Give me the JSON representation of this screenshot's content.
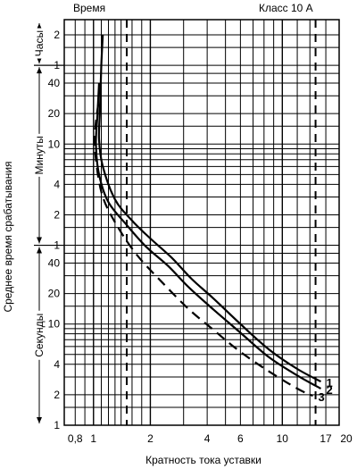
{
  "chart_data": {
    "type": "line",
    "title_left": "Время",
    "title_right": "Класс 10 А",
    "xlabel": "Кратность тока уставки",
    "ylabel": "Среднее время срабатывания",
    "x_scale": "log",
    "xlim": [
      0.7,
      20
    ],
    "x_ticks": [
      {
        "value": 0.8,
        "label": "0,8"
      },
      {
        "value": 1,
        "label": "1"
      },
      {
        "value": 2,
        "label": "2"
      },
      {
        "value": 4,
        "label": "4"
      },
      {
        "value": 6,
        "label": "6"
      },
      {
        "value": 10,
        "label": "10"
      },
      {
        "value": 17,
        "label": "17"
      },
      {
        "value": 20,
        "label": "20"
      }
    ],
    "y_scale": "log",
    "y_unit": "seconds",
    "y_decades": [
      {
        "name": "Часы",
        "unit": "hours",
        "ticks": [
          {
            "value": 1,
            "label": "1"
          },
          {
            "value": 2,
            "label": "2"
          }
        ]
      },
      {
        "name": "Минуты",
        "unit": "minutes",
        "ticks": [
          {
            "value": 1,
            "label": "1"
          },
          {
            "value": 2,
            "label": "2"
          },
          {
            "value": 4,
            "label": "4"
          },
          {
            "value": 10,
            "label": "10"
          },
          {
            "value": 20,
            "label": "20"
          },
          {
            "value": 40,
            "label": "40"
          }
        ]
      },
      {
        "name": "Секунды",
        "unit": "seconds",
        "ticks": [
          {
            "value": 1,
            "label": "1"
          },
          {
            "value": 2,
            "label": "2"
          },
          {
            "value": 4,
            "label": "4"
          },
          {
            "value": 10,
            "label": "10"
          },
          {
            "value": 20,
            "label": "20"
          },
          {
            "value": 40,
            "label": "40"
          }
        ]
      }
    ],
    "reference_lines_x": [
      1.5,
      15
    ],
    "series": [
      {
        "name": "1",
        "style": "solid",
        "points": [
          [
            1.12,
            7200
          ],
          [
            1.1,
            3600
          ],
          [
            1.08,
            1200
          ],
          [
            1.07,
            660
          ],
          [
            1.12,
            360
          ],
          [
            1.3,
            170
          ],
          [
            1.6,
            105
          ],
          [
            2.0,
            70
          ],
          [
            2.6,
            45
          ],
          [
            3.3,
            28
          ],
          [
            4.3,
            18
          ],
          [
            6.0,
            10
          ],
          [
            8.5,
            5.6
          ],
          [
            12.0,
            3.6
          ],
          [
            16.0,
            2.7
          ]
        ]
      },
      {
        "name": "2",
        "style": "solid",
        "points": [
          [
            1.07,
            2400
          ],
          [
            1.05,
            1200
          ],
          [
            1.03,
            600
          ],
          [
            1.07,
            300
          ],
          [
            1.2,
            160
          ],
          [
            1.5,
            95
          ],
          [
            1.9,
            58
          ],
          [
            2.5,
            37
          ],
          [
            3.2,
            23
          ],
          [
            4.3,
            14
          ],
          [
            6.0,
            8.2
          ],
          [
            8.5,
            4.7
          ],
          [
            12.0,
            3.1
          ],
          [
            16.0,
            2.3
          ]
        ]
      },
      {
        "name": "3",
        "style": "dashed",
        "points": [
          [
            1.06,
            1500
          ],
          [
            1.02,
            800
          ],
          [
            1.03,
            420
          ],
          [
            1.12,
            180
          ],
          [
            1.35,
            90
          ],
          [
            1.7,
            48
          ],
          [
            2.3,
            26
          ],
          [
            3.2,
            14
          ],
          [
            4.4,
            8.5
          ],
          [
            6.0,
            5.3
          ],
          [
            8.5,
            3.4
          ],
          [
            12.0,
            2.3
          ],
          [
            14.5,
            1.95
          ]
        ]
      }
    ]
  }
}
